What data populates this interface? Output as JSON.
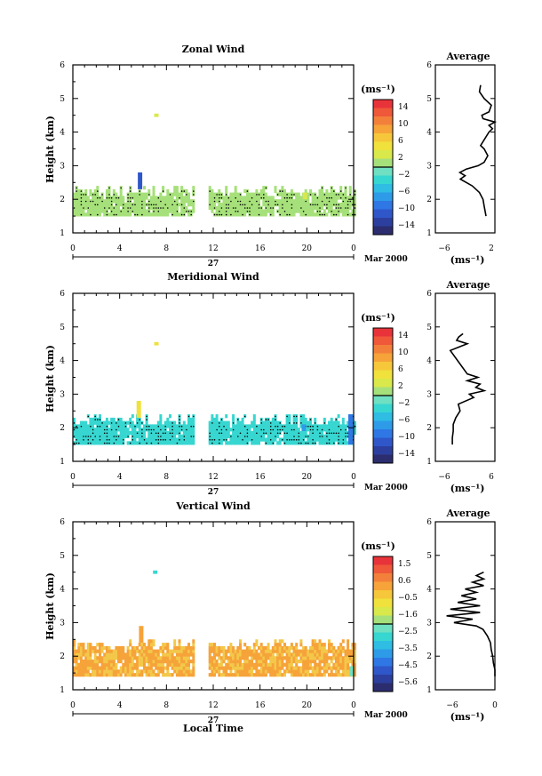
{
  "figure": {
    "xlabel": "Local Time",
    "date_label": "Mar 2000",
    "day_label": "27"
  },
  "chart_data": [
    {
      "type": "heatmap",
      "title": "Zonal Wind",
      "ylabel": "Height (km)",
      "xlabel": "Local Time",
      "x_ticks": [
        "0",
        "4",
        "8",
        "12",
        "16",
        "20",
        "0"
      ],
      "xlim": [
        0,
        24
      ],
      "ylim": [
        1,
        6
      ],
      "y_ticks": [
        1,
        2,
        3,
        4,
        5,
        6
      ],
      "colorbar": {
        "unit": "(ms⁻¹)",
        "ticks": [
          "14",
          "10",
          "6",
          "2",
          "−2",
          "−6",
          "−10",
          "−14"
        ],
        "range": [
          -16,
          16
        ]
      },
      "data_gap_hours": [
        10.3,
        11.5
      ],
      "fill_value_ms": 0,
      "cells_height_range_km": [
        1.5,
        2.4
      ],
      "features": [
        {
          "t": 5.7,
          "z_from": 2.3,
          "z_to": 2.8,
          "value": -11
        },
        {
          "t": 7.1,
          "z_from": 4.45,
          "z_to": 4.55,
          "value": 2
        },
        {
          "t": 19.8,
          "z_from": 2.0,
          "z_to": 2.2,
          "value": 3
        }
      ],
      "profile": {
        "title": "Average",
        "xlabel": "(ms⁻¹)",
        "x_ticks": [
          "−6",
          "2"
        ],
        "xlim": [
          -7,
          3
        ],
        "ylim": [
          1,
          6
        ],
        "height": [
          1.5,
          1.6,
          1.8,
          2.0,
          2.2,
          2.4,
          2.6,
          2.7,
          2.8,
          2.9,
          3.0,
          3.1,
          3.3,
          3.5,
          3.6,
          4.0,
          4.1,
          4.2,
          4.3,
          4.4,
          4.5,
          4.6,
          4.8,
          5.0,
          5.2,
          5.4
        ],
        "wind": [
          1.5,
          1.4,
          1.2,
          1.0,
          0.4,
          -0.8,
          -2.8,
          -2.0,
          -2.9,
          -1.8,
          0.2,
          1.2,
          1.8,
          1.2,
          0.6,
          2.0,
          2.6,
          2.0,
          3.0,
          1.0,
          0.8,
          2.0,
          2.4,
          1.2,
          0.4,
          0.6
        ]
      }
    },
    {
      "type": "heatmap",
      "title": "Meridional Wind",
      "ylabel": "Height (km)",
      "xlabel": "Local Time",
      "x_ticks": [
        "0",
        "4",
        "8",
        "12",
        "16",
        "20",
        "0"
      ],
      "xlim": [
        0,
        24
      ],
      "ylim": [
        1,
        6
      ],
      "y_ticks": [
        1,
        2,
        3,
        4,
        5,
        6
      ],
      "colorbar": {
        "unit": "(ms⁻¹)",
        "ticks": [
          "14",
          "10",
          "6",
          "2",
          "−2",
          "−6",
          "−10",
          "−14"
        ],
        "range": [
          -16,
          16
        ]
      },
      "data_gap_hours": [
        10.3,
        11.5
      ],
      "fill_value_ms": -3,
      "cells_height_range_km": [
        1.5,
        2.4
      ],
      "features": [
        {
          "t": 5.6,
          "z_from": 2.3,
          "z_to": 2.8,
          "value": 4
        },
        {
          "t": 7.1,
          "z_from": 4.45,
          "z_to": 4.55,
          "value": 4
        },
        {
          "t": 19.7,
          "z_from": 1.9,
          "z_to": 2.1,
          "value": -8
        },
        {
          "t": 23.7,
          "z_from": 1.5,
          "z_to": 2.4,
          "value": -10
        }
      ],
      "profile": {
        "title": "Average",
        "xlabel": "(ms⁻¹)",
        "x_ticks": [
          "−6",
          "6"
        ],
        "xlim": [
          -7,
          7
        ],
        "ylim": [
          1,
          6
        ],
        "height": [
          1.5,
          1.7,
          1.9,
          2.1,
          2.3,
          2.5,
          2.7,
          2.9,
          3.0,
          3.1,
          3.2,
          3.3,
          3.4,
          3.5,
          3.6,
          4.3,
          4.4,
          4.5,
          4.6,
          4.7,
          4.8
        ],
        "wind": [
          -3.0,
          -3.0,
          -2.8,
          -2.8,
          -2.2,
          -1.2,
          -1.6,
          2.0,
          1.0,
          4.5,
          2.5,
          3.5,
          0.5,
          3.0,
          0.5,
          -3.5,
          -1.5,
          0.5,
          -2.0,
          -1.5,
          -0.5
        ]
      }
    },
    {
      "type": "heatmap",
      "title": "Vertical Wind",
      "ylabel": "Height (km)",
      "xlabel": "Local Time",
      "x_ticks": [
        "0",
        "4",
        "8",
        "12",
        "16",
        "20",
        "0"
      ],
      "xlim": [
        0,
        24
      ],
      "ylim": [
        1,
        6
      ],
      "y_ticks": [
        1,
        2,
        3,
        4,
        5,
        6
      ],
      "colorbar": {
        "unit": "(ms⁻¹)",
        "ticks": [
          "1.5",
          "0.6",
          "−0.5",
          "−1.6",
          "−2.5",
          "−3.5",
          "−4.5",
          "−5.6"
        ],
        "range": [
          -6,
          2
        ]
      },
      "data_gap_hours": [
        10.3,
        11.5
      ],
      "fill_value_ms": 0.1,
      "cells_height_range_km": [
        1.4,
        2.5
      ],
      "features": [
        {
          "t": 5.8,
          "z_from": 2.4,
          "z_to": 2.9,
          "value": 0.1
        },
        {
          "t": 7.0,
          "z_from": 4.45,
          "z_to": 4.55,
          "value": -2.7
        },
        {
          "t": 23.8,
          "z_from": 1.4,
          "z_to": 1.7,
          "value": -2.3
        }
      ],
      "profile": {
        "title": "Average",
        "xlabel": "(ms⁻¹)",
        "x_ticks": [
          "−6",
          "0"
        ],
        "xlim": [
          -8,
          0
        ],
        "ylim": [
          1,
          6
        ],
        "height": [
          1.4,
          1.6,
          1.8,
          2.0,
          2.2,
          2.4,
          2.6,
          2.8,
          2.9,
          3.0,
          3.1,
          3.2,
          3.3,
          3.4,
          3.5,
          3.6,
          3.7,
          3.8,
          3.9,
          4.0,
          4.1,
          4.2,
          4.3,
          4.4,
          4.5
        ],
        "wind": [
          0.0,
          0.0,
          -0.2,
          -0.3,
          -0.5,
          -0.6,
          -1.0,
          -1.6,
          -2.5,
          -5.5,
          -3.0,
          -6.5,
          -2.0,
          -6.0,
          -2.0,
          -5.0,
          -2.5,
          -4.5,
          -2.5,
          -4.0,
          -1.5,
          -3.0,
          -1.5,
          -2.5,
          -1.5
        ]
      }
    }
  ]
}
